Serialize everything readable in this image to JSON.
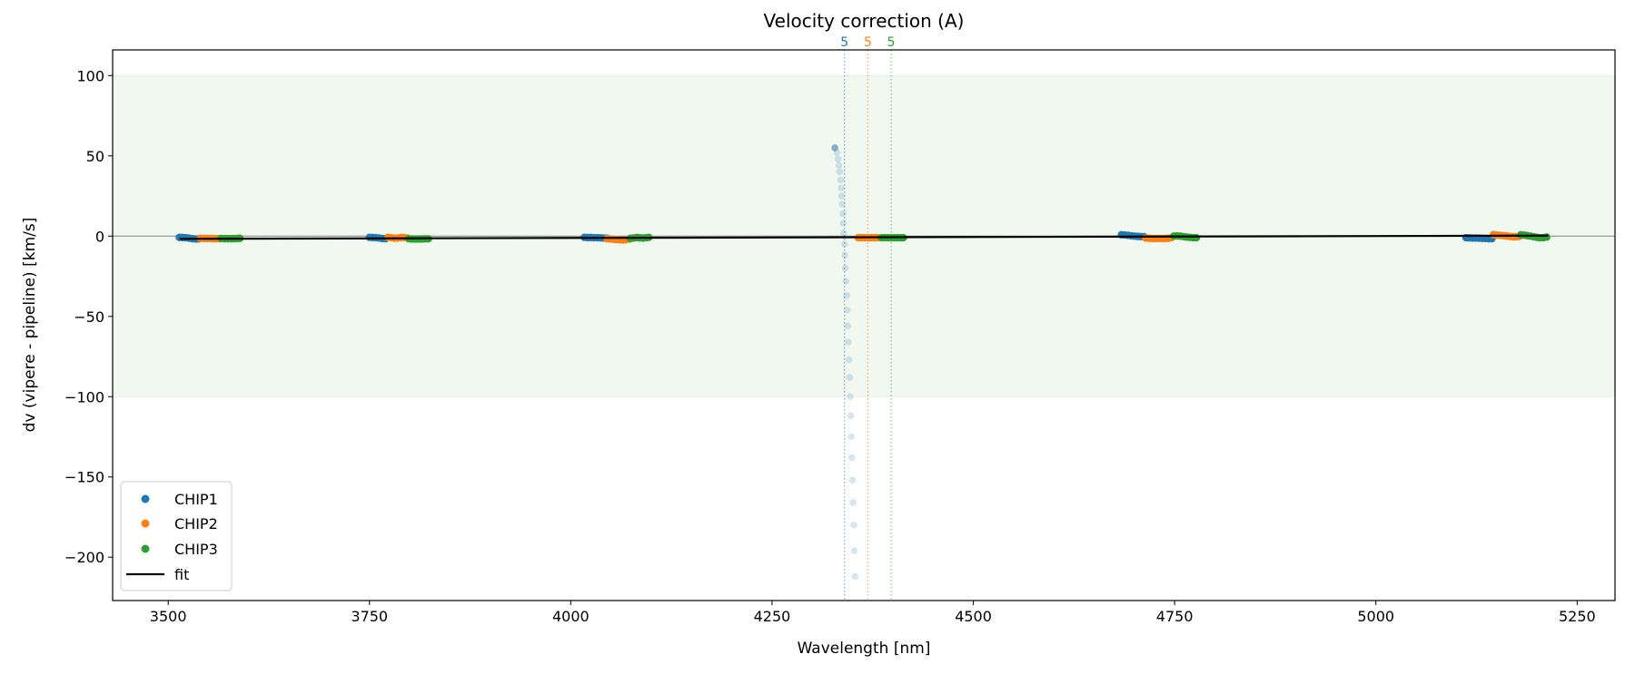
{
  "chart_data": {
    "type": "scatter",
    "title": "Velocity correction (A)",
    "xlabel": "Wavelength [nm]",
    "ylabel": "dv (vipere - pipeline) [km/s]",
    "xlim": [
      3431,
      5297
    ],
    "ylim": [
      -227,
      116
    ],
    "xticks": [
      3500,
      3750,
      4000,
      4250,
      4500,
      4750,
      5000,
      5250
    ],
    "yticks": [
      -200,
      -150,
      -100,
      -50,
      0,
      50,
      100
    ],
    "grid": false,
    "legend_placement": "lower-left",
    "shaded_band": {
      "from": -100,
      "to": 100,
      "color": "#2ca02c"
    },
    "zero_line": 0,
    "markers": [
      {
        "x": 4340,
        "label": "5",
        "color": "#1f77b4"
      },
      {
        "x": 4369,
        "label": "5",
        "color": "#ff7f0e"
      },
      {
        "x": 4398,
        "label": "5",
        "color": "#2ca02c"
      }
    ],
    "series": [
      {
        "name": "CHIP1",
        "color": "#1f77b4",
        "points": [
          [
            3514,
            -0.8
          ],
          [
            3518,
            -0.9
          ],
          [
            3522,
            -1.0
          ],
          [
            3526,
            -1.3
          ],
          [
            3530,
            -1.6
          ],
          [
            3534,
            -1.8
          ],
          [
            3538,
            -1.7
          ],
          [
            3750,
            -0.8
          ],
          [
            3754,
            -0.9
          ],
          [
            3758,
            -1.0
          ],
          [
            3762,
            -1.2
          ],
          [
            3766,
            -1.5
          ],
          [
            3770,
            -1.6
          ],
          [
            4017,
            -0.8
          ],
          [
            4021,
            -0.9
          ],
          [
            4025,
            -0.9
          ],
          [
            4029,
            -1.0
          ],
          [
            4033,
            -1.0
          ],
          [
            4037,
            -1.1
          ],
          [
            4041,
            -1.2
          ],
          [
            4045,
            -1.3
          ],
          [
            4684,
            0.8
          ],
          [
            4688,
            0.7
          ],
          [
            4692,
            0.5
          ],
          [
            4696,
            0.2
          ],
          [
            4700,
            0.0
          ],
          [
            4704,
            -0.2
          ],
          [
            4708,
            -0.3
          ],
          [
            4712,
            -0.4
          ],
          [
            5112,
            -1.0
          ],
          [
            5116,
            -1.1
          ],
          [
            5120,
            -1.2
          ],
          [
            5124,
            -1.2
          ],
          [
            5128,
            -1.3
          ],
          [
            5132,
            -1.4
          ],
          [
            5136,
            -1.5
          ],
          [
            5140,
            -1.6
          ],
          [
            5144,
            -1.6
          ]
        ],
        "outlier_points": [
          [
            4328,
            55
          ],
          [
            4330.6,
            52
          ],
          [
            4332,
            48
          ],
          [
            4333,
            44
          ],
          [
            4334,
            40
          ],
          [
            4335,
            35
          ],
          [
            4336,
            30
          ],
          [
            4336.4,
            25
          ],
          [
            4337,
            20
          ],
          [
            4338,
            14
          ],
          [
            4338.5,
            8
          ],
          [
            4339,
            2
          ],
          [
            4340,
            -5
          ],
          [
            4340.5,
            -12
          ],
          [
            4341,
            -20
          ],
          [
            4342,
            -28
          ],
          [
            4342.7,
            -37
          ],
          [
            4343.4,
            -46
          ],
          [
            4344,
            -56
          ],
          [
            4344.8,
            -66
          ],
          [
            4345.6,
            -77
          ],
          [
            4346.3,
            -88
          ],
          [
            4347,
            -100
          ],
          [
            4347.8,
            -112
          ],
          [
            4348.5,
            -125
          ],
          [
            4349.3,
            -138
          ],
          [
            4350,
            -152
          ],
          [
            4350.7,
            -166
          ],
          [
            4351.5,
            -180
          ],
          [
            4352.2,
            -196
          ],
          [
            4353,
            -212
          ]
        ]
      },
      {
        "name": "CHIP2",
        "color": "#ff7f0e",
        "points": [
          [
            3540,
            -1.4
          ],
          [
            3544,
            -1.5
          ],
          [
            3548,
            -1.5
          ],
          [
            3552,
            -1.5
          ],
          [
            3556,
            -1.6
          ],
          [
            3560,
            -1.6
          ],
          [
            3564,
            -1.6
          ],
          [
            3773,
            -0.8
          ],
          [
            3777,
            -1.0
          ],
          [
            3781,
            -1.3
          ],
          [
            3785,
            -1.2
          ],
          [
            3789,
            -0.9
          ],
          [
            3793,
            -0.9
          ],
          [
            3797,
            -1.2
          ],
          [
            4045,
            -1.6
          ],
          [
            4049,
            -1.8
          ],
          [
            4053,
            -2.0
          ],
          [
            4057,
            -2.2
          ],
          [
            4061,
            -2.3
          ],
          [
            4065,
            -2.4
          ],
          [
            4069,
            -2.2
          ],
          [
            4073,
            -1.8
          ],
          [
            4357,
            -1.0
          ],
          [
            4361,
            -1.0
          ],
          [
            4365,
            -1.0
          ],
          [
            4369,
            -1.0
          ],
          [
            4373,
            -1.0
          ],
          [
            4377,
            -1.0
          ],
          [
            4381,
            -1.0
          ],
          [
            4714,
            -1.2
          ],
          [
            4718,
            -1.4
          ],
          [
            4722,
            -1.5
          ],
          [
            4726,
            -1.5
          ],
          [
            4730,
            -1.5
          ],
          [
            4734,
            -1.5
          ],
          [
            4738,
            -1.5
          ],
          [
            4742,
            -1.4
          ],
          [
            4746,
            -1.0
          ],
          [
            5146,
            0.9
          ],
          [
            5150,
            0.6
          ],
          [
            5154,
            0.5
          ],
          [
            5158,
            0.3
          ],
          [
            5162,
            0.1
          ],
          [
            5166,
            -0.2
          ],
          [
            5170,
            -0.4
          ],
          [
            5174,
            -0.4
          ],
          [
            5178,
            -0.2
          ]
        ]
      },
      {
        "name": "CHIP3",
        "color": "#2ca02c",
        "points": [
          [
            3566,
            -1.5
          ],
          [
            3570,
            -1.6
          ],
          [
            3574,
            -1.6
          ],
          [
            3578,
            -1.6
          ],
          [
            3582,
            -1.6
          ],
          [
            3586,
            -1.5
          ],
          [
            3589,
            -1.4
          ],
          [
            3799,
            -1.7
          ],
          [
            3803,
            -1.8
          ],
          [
            3807,
            -1.8
          ],
          [
            3811,
            -1.8
          ],
          [
            3815,
            -1.8
          ],
          [
            3819,
            -1.7
          ],
          [
            3823,
            -1.7
          ],
          [
            4074,
            -1.4
          ],
          [
            4078,
            -1.2
          ],
          [
            4082,
            -0.9
          ],
          [
            4086,
            -1.1
          ],
          [
            4090,
            -1.2
          ],
          [
            4094,
            -1.0
          ],
          [
            4097,
            -0.8
          ],
          [
            4386,
            -1.0
          ],
          [
            4390,
            -1.0
          ],
          [
            4394,
            -1.0
          ],
          [
            4398,
            -1.0
          ],
          [
            4402,
            -1.0
          ],
          [
            4406,
            -1.0
          ],
          [
            4410,
            -1.0
          ],
          [
            4413,
            -1.0
          ],
          [
            4749,
            0.0
          ],
          [
            4753,
            0.1
          ],
          [
            4757,
            0.0
          ],
          [
            4761,
            -0.3
          ],
          [
            4765,
            -0.6
          ],
          [
            4769,
            -0.8
          ],
          [
            4773,
            -1.0
          ],
          [
            4777,
            -1.0
          ],
          [
            5180,
            0.8
          ],
          [
            5184,
            0.6
          ],
          [
            5188,
            0.3
          ],
          [
            5192,
            0.0
          ],
          [
            5196,
            -0.4
          ],
          [
            5200,
            -0.8
          ],
          [
            5204,
            -1.0
          ],
          [
            5208,
            -1.0
          ],
          [
            5212,
            -0.6
          ]
        ]
      }
    ],
    "fit": {
      "name": "fit",
      "color": "#000000",
      "points": [
        [
          3514,
          -1.7
        ],
        [
          5214,
          0.3
        ]
      ]
    }
  }
}
